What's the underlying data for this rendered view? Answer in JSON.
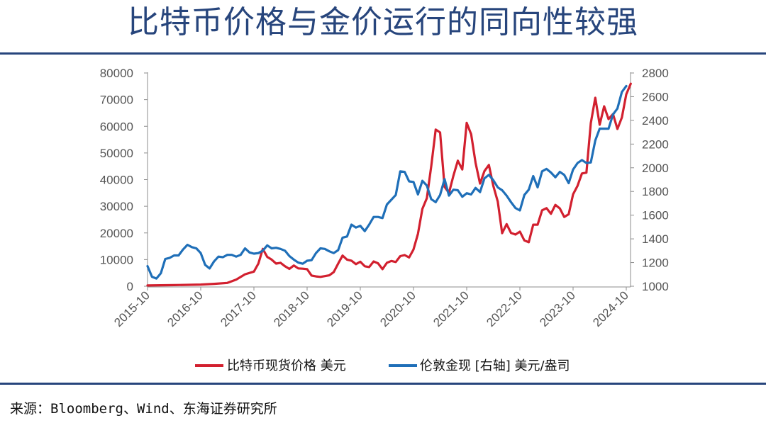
{
  "title": "比特币价格与金价运行的同向性较强",
  "source": "来源：Bloomberg、Wind、东海证券研究所",
  "chart_data": {
    "type": "line",
    "title": "比特币价格与金价运行的同向性较强",
    "x_ticks": [
      "2015-10",
      "2016-10",
      "2017-10",
      "2018-10",
      "2019-10",
      "2020-10",
      "2021-10",
      "2022-10",
      "2023-10",
      "2024-10"
    ],
    "x_range": [
      "2015-10",
      "2024-10"
    ],
    "left_axis": {
      "ylim": [
        0,
        80000
      ],
      "ticks": [
        0,
        10000,
        20000,
        30000,
        40000,
        50000,
        60000,
        70000,
        80000
      ]
    },
    "right_axis": {
      "ylim": [
        1000,
        2800
      ],
      "ticks": [
        1000,
        1200,
        1400,
        1600,
        1800,
        2000,
        2200,
        2400,
        2600,
        2800
      ]
    },
    "grid": false,
    "legend_position": "bottom",
    "series": [
      {
        "name": "比特币现货价格 美元",
        "axis": "left",
        "color": "#d2202f",
        "points": [
          [
            "2015-10",
            300
          ],
          [
            "2016-04",
            420
          ],
          [
            "2016-10",
            640
          ],
          [
            "2017-01",
            900
          ],
          [
            "2017-04",
            1250
          ],
          [
            "2017-06",
            2500
          ],
          [
            "2017-08",
            4500
          ],
          [
            "2017-10",
            5500
          ],
          [
            "2017-11",
            8500
          ],
          [
            "2017-12",
            14000
          ],
          [
            "2018-01",
            11000
          ],
          [
            "2018-02",
            10000
          ],
          [
            "2018-03",
            8500
          ],
          [
            "2018-04",
            8800
          ],
          [
            "2018-05",
            7500
          ],
          [
            "2018-06",
            6500
          ],
          [
            "2018-07",
            7800
          ],
          [
            "2018-08",
            6700
          ],
          [
            "2018-09",
            6600
          ],
          [
            "2018-10",
            6400
          ],
          [
            "2018-11",
            4000
          ],
          [
            "2018-12",
            3700
          ],
          [
            "2019-01",
            3500
          ],
          [
            "2019-02",
            3800
          ],
          [
            "2019-03",
            4100
          ],
          [
            "2019-04",
            5300
          ],
          [
            "2019-05",
            8500
          ],
          [
            "2019-06",
            11500
          ],
          [
            "2019-07",
            10000
          ],
          [
            "2019-08",
            9600
          ],
          [
            "2019-09",
            8300
          ],
          [
            "2019-10",
            9200
          ],
          [
            "2019-11",
            7500
          ],
          [
            "2019-12",
            7200
          ],
          [
            "2020-01",
            9300
          ],
          [
            "2020-02",
            8600
          ],
          [
            "2020-03",
            6400
          ],
          [
            "2020-04",
            8800
          ],
          [
            "2020-05",
            9500
          ],
          [
            "2020-06",
            9100
          ],
          [
            "2020-07",
            11300
          ],
          [
            "2020-08",
            11700
          ],
          [
            "2020-09",
            10800
          ],
          [
            "2020-10",
            13800
          ],
          [
            "2020-11",
            19700
          ],
          [
            "2020-12",
            29000
          ],
          [
            "2021-01",
            33000
          ],
          [
            "2021-02",
            45000
          ],
          [
            "2021-03",
            58800
          ],
          [
            "2021-04",
            57700
          ],
          [
            "2021-05",
            37300
          ],
          [
            "2021-06",
            35000
          ],
          [
            "2021-07",
            41500
          ],
          [
            "2021-08",
            47100
          ],
          [
            "2021-09",
            43800
          ],
          [
            "2021-10",
            61300
          ],
          [
            "2021-11",
            57000
          ],
          [
            "2021-12",
            46300
          ],
          [
            "2022-01",
            38500
          ],
          [
            "2022-02",
            43200
          ],
          [
            "2022-03",
            45500
          ],
          [
            "2022-04",
            37700
          ],
          [
            "2022-05",
            31800
          ],
          [
            "2022-06",
            19900
          ],
          [
            "2022-07",
            23300
          ],
          [
            "2022-08",
            20000
          ],
          [
            "2022-09",
            19400
          ],
          [
            "2022-10",
            20500
          ],
          [
            "2022-11",
            17200
          ],
          [
            "2022-12",
            16500
          ],
          [
            "2023-01",
            23100
          ],
          [
            "2023-02",
            23100
          ],
          [
            "2023-03",
            28500
          ],
          [
            "2023-04",
            29300
          ],
          [
            "2023-05",
            27200
          ],
          [
            "2023-06",
            30500
          ],
          [
            "2023-07",
            29200
          ],
          [
            "2023-08",
            26000
          ],
          [
            "2023-09",
            27000
          ],
          [
            "2023-10",
            34500
          ],
          [
            "2023-11",
            37700
          ],
          [
            "2023-12",
            42300
          ],
          [
            "2024-01",
            42600
          ],
          [
            "2024-02",
            61200
          ],
          [
            "2024-03",
            70700
          ],
          [
            "2024-04",
            60600
          ],
          [
            "2024-05",
            67500
          ],
          [
            "2024-06",
            62700
          ],
          [
            "2024-07",
            64600
          ],
          [
            "2024-08",
            59000
          ],
          [
            "2024-09",
            63300
          ],
          [
            "2024-10",
            72000
          ],
          [
            "2024-11",
            76000
          ]
        ]
      },
      {
        "name": "伦敦金现 [右轴] 美元/盎司",
        "axis": "right",
        "color": "#1f6fb8",
        "points": [
          [
            "2015-10",
            1170
          ],
          [
            "2015-11",
            1080
          ],
          [
            "2015-12",
            1065
          ],
          [
            "2016-01",
            1110
          ],
          [
            "2016-02",
            1230
          ],
          [
            "2016-03",
            1240
          ],
          [
            "2016-04",
            1260
          ],
          [
            "2016-05",
            1260
          ],
          [
            "2016-06",
            1310
          ],
          [
            "2016-07",
            1350
          ],
          [
            "2016-08",
            1330
          ],
          [
            "2016-09",
            1320
          ],
          [
            "2016-10",
            1280
          ],
          [
            "2016-11",
            1180
          ],
          [
            "2016-12",
            1150
          ],
          [
            "2017-01",
            1210
          ],
          [
            "2017-02",
            1250
          ],
          [
            "2017-03",
            1245
          ],
          [
            "2017-04",
            1265
          ],
          [
            "2017-05",
            1265
          ],
          [
            "2017-06",
            1250
          ],
          [
            "2017-07",
            1265
          ],
          [
            "2017-08",
            1320
          ],
          [
            "2017-09",
            1285
          ],
          [
            "2017-10",
            1275
          ],
          [
            "2017-11",
            1280
          ],
          [
            "2017-12",
            1300
          ],
          [
            "2018-01",
            1345
          ],
          [
            "2018-02",
            1320
          ],
          [
            "2018-03",
            1325
          ],
          [
            "2018-04",
            1315
          ],
          [
            "2018-05",
            1300
          ],
          [
            "2018-06",
            1255
          ],
          [
            "2018-07",
            1225
          ],
          [
            "2018-08",
            1200
          ],
          [
            "2018-09",
            1190
          ],
          [
            "2018-10",
            1215
          ],
          [
            "2018-11",
            1220
          ],
          [
            "2018-12",
            1280
          ],
          [
            "2019-01",
            1320
          ],
          [
            "2019-02",
            1315
          ],
          [
            "2019-03",
            1295
          ],
          [
            "2019-04",
            1280
          ],
          [
            "2019-05",
            1305
          ],
          [
            "2019-06",
            1410
          ],
          [
            "2019-07",
            1420
          ],
          [
            "2019-08",
            1520
          ],
          [
            "2019-09",
            1495
          ],
          [
            "2019-10",
            1510
          ],
          [
            "2019-11",
            1465
          ],
          [
            "2019-12",
            1520
          ],
          [
            "2020-01",
            1585
          ],
          [
            "2020-02",
            1585
          ],
          [
            "2020-03",
            1575
          ],
          [
            "2020-04",
            1690
          ],
          [
            "2020-05",
            1730
          ],
          [
            "2020-06",
            1770
          ],
          [
            "2020-07",
            1970
          ],
          [
            "2020-08",
            1965
          ],
          [
            "2020-09",
            1885
          ],
          [
            "2020-10",
            1880
          ],
          [
            "2020-11",
            1775
          ],
          [
            "2020-12",
            1890
          ],
          [
            "2021-01",
            1850
          ],
          [
            "2021-02",
            1735
          ],
          [
            "2021-03",
            1710
          ],
          [
            "2021-04",
            1770
          ],
          [
            "2021-05",
            1905
          ],
          [
            "2021-06",
            1765
          ],
          [
            "2021-07",
            1815
          ],
          [
            "2021-08",
            1810
          ],
          [
            "2021-09",
            1755
          ],
          [
            "2021-10",
            1785
          ],
          [
            "2021-11",
            1775
          ],
          [
            "2021-12",
            1830
          ],
          [
            "2022-01",
            1795
          ],
          [
            "2022-02",
            1910
          ],
          [
            "2022-03",
            1940
          ],
          [
            "2022-04",
            1895
          ],
          [
            "2022-05",
            1835
          ],
          [
            "2022-06",
            1810
          ],
          [
            "2022-07",
            1765
          ],
          [
            "2022-08",
            1710
          ],
          [
            "2022-09",
            1660
          ],
          [
            "2022-10",
            1640
          ],
          [
            "2022-11",
            1770
          ],
          [
            "2022-12",
            1815
          ],
          [
            "2023-01",
            1930
          ],
          [
            "2023-02",
            1835
          ],
          [
            "2023-03",
            1970
          ],
          [
            "2023-04",
            1990
          ],
          [
            "2023-05",
            1960
          ],
          [
            "2023-06",
            1920
          ],
          [
            "2023-07",
            1965
          ],
          [
            "2023-08",
            1940
          ],
          [
            "2023-09",
            1870
          ],
          [
            "2023-10",
            1985
          ],
          [
            "2023-11",
            2040
          ],
          [
            "2023-12",
            2065
          ],
          [
            "2024-01",
            2040
          ],
          [
            "2024-02",
            2045
          ],
          [
            "2024-03",
            2230
          ],
          [
            "2024-04",
            2330
          ],
          [
            "2024-05",
            2330
          ],
          [
            "2024-06",
            2330
          ],
          [
            "2024-07",
            2450
          ],
          [
            "2024-08",
            2500
          ],
          [
            "2024-09",
            2640
          ],
          [
            "2024-10",
            2690
          ]
        ]
      }
    ]
  }
}
